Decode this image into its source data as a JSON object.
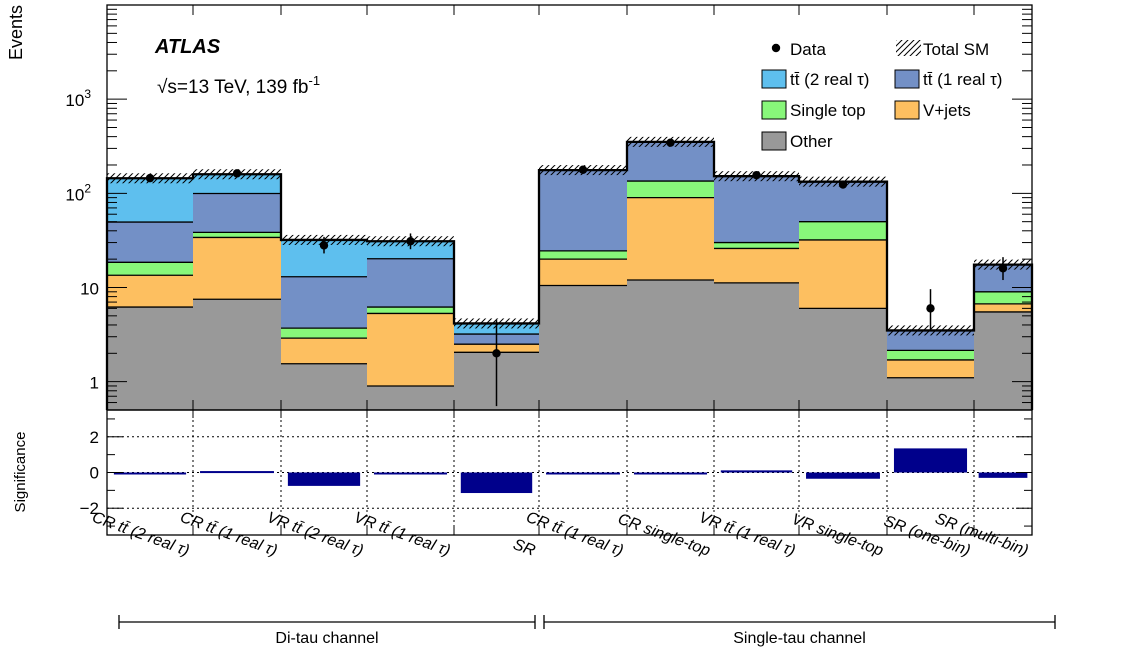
{
  "chart_data": [
    {
      "type": "bar",
      "stacked": true,
      "log_scale": true,
      "ylabel": "Events",
      "ylim": [
        0.5,
        10000
      ],
      "y_ticks": [
        {
          "value": 1,
          "label": "1"
        },
        {
          "value": 10,
          "label": "10"
        },
        {
          "value": 100,
          "label": "10",
          "sup": "2"
        },
        {
          "value": 1000,
          "label": "10",
          "sup": "3"
        }
      ],
      "experiment": "ATLAS",
      "energy_label": "√s=13 TeV, 139 fb",
      "energy_sup": "-1",
      "categories": [
        "CR tt̄ (2 real τ)",
        "CR tt̄ (1 real τ)",
        "VR tt̄ (2 real τ)",
        "VR tt̄ (1 real τ)",
        "SR",
        "CR tt̄ (1 real τ)",
        "CR single-top",
        "VR tt̄ (1 real τ)",
        "VR single-top",
        "SR (one-bin)",
        "SR (multi-bin)"
      ],
      "series": [
        {
          "key": "other",
          "name": "Other",
          "color": "#999999",
          "values": [
            6.2,
            7.5,
            1.55,
            0.9,
            2.05,
            10.5,
            12.0,
            11.2,
            6.0,
            1.1,
            5.5
          ]
        },
        {
          "key": "vjets",
          "name": "V+jets",
          "color": "#fdbf60",
          "values": [
            7.3,
            26.5,
            1.35,
            4.4,
            0.45,
            9.5,
            78.0,
            14.8,
            26.0,
            0.6,
            1.2
          ]
        },
        {
          "key": "single_top",
          "name": "Single top",
          "color": "#88f77a",
          "values": [
            5.0,
            4.5,
            0.8,
            0.9,
            0.0,
            4.5,
            45.0,
            4.0,
            18.0,
            0.45,
            2.3
          ]
        },
        {
          "key": "tt_1real",
          "name": "tt̄ (1 real τ)",
          "color": "#7390c6",
          "values": [
            31.0,
            61.0,
            9.3,
            14.0,
            0.7,
            152.0,
            217.0,
            122.0,
            83.0,
            1.35,
            8.5
          ]
        },
        {
          "key": "tt_2real",
          "name": "tt̄ (2 real τ)",
          "color": "#5ebfee",
          "values": [
            95.0,
            60.0,
            19.0,
            10.8,
            0.95,
            0.0,
            0.0,
            0.0,
            0.0,
            0.0,
            0.0
          ]
        }
      ],
      "total_sm": [
        144.5,
        159.5,
        32.0,
        31.0,
        4.15,
        176.5,
        352.0,
        152.0,
        133.0,
        3.5,
        17.5
      ],
      "data": {
        "name": "Data",
        "values": [
          145,
          163,
          28,
          31,
          2
        ],
        "values_st": [
          178,
          345,
          156,
          124,
          6,
          16
        ],
        "err_low": [
          11,
          12,
          5,
          5.5,
          1.45,
          12,
          17,
          12,
          10.5,
          2.4,
          4
        ],
        "err_high": [
          13,
          13,
          6.5,
          6.5,
          2.5,
          13,
          19,
          14,
          12,
          3.6,
          5
        ]
      },
      "legend": {
        "position": "top-right",
        "data_label": "Data",
        "total_label": "Total SM"
      },
      "channels": [
        {
          "label": "Di-tau channel",
          "from": 0,
          "to": 4
        },
        {
          "label": "Single-tau channel",
          "from": 5,
          "to": 10
        }
      ]
    },
    {
      "type": "bar",
      "ylabel": "Significance",
      "ylim": [
        -3.5,
        3.5
      ],
      "y_ticks": [
        {
          "value": 2,
          "label": "2"
        },
        {
          "value": 0,
          "label": "0"
        },
        {
          "value": -2,
          "label": "−2"
        }
      ],
      "gridlines": [
        -2,
        0,
        2
      ],
      "color": "#00008b",
      "values": [
        -0.04,
        0.08,
        -0.75,
        -0.05,
        -1.15,
        -0.05,
        -0.05,
        0.12,
        -0.35,
        1.35,
        -0.3
      ]
    }
  ]
}
